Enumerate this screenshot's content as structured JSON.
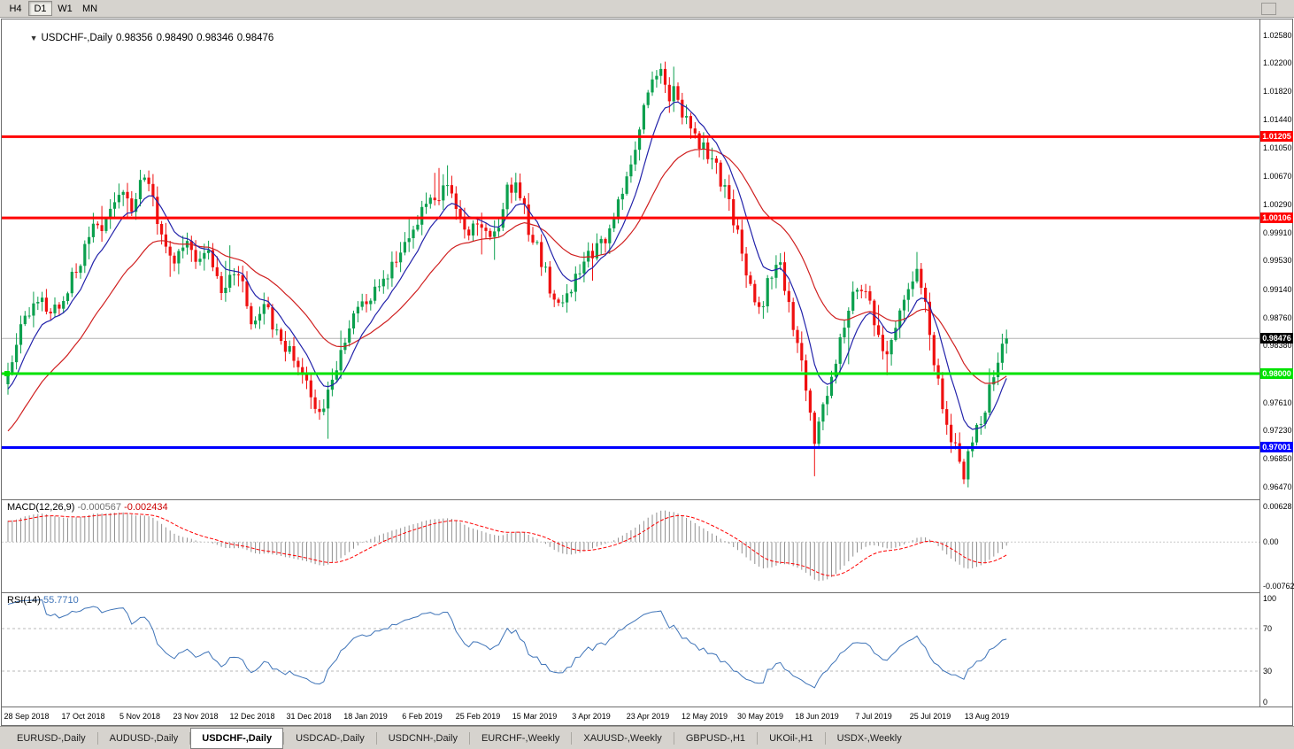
{
  "toolbar": {
    "timeframes": [
      {
        "label": "H4",
        "active": false
      },
      {
        "label": "D1",
        "active": true
      },
      {
        "label": "W1",
        "active": false
      },
      {
        "label": "MN",
        "active": false
      }
    ]
  },
  "chart_header": {
    "oct_icon": "▼",
    "symbol": "USDCHF-,Daily",
    "open": "0.98356",
    "high": "0.98490",
    "low": "0.98346",
    "close": "0.98476"
  },
  "price_axis": {
    "ticks": [
      "1.02580",
      "1.02200",
      "1.01820",
      "1.01440",
      "1.01050",
      "1.00670",
      "1.00290",
      "0.99910",
      "0.99530",
      "0.99140",
      "0.98760",
      "0.98380",
      "0.97990",
      "0.97610",
      "0.97230",
      "0.96850",
      "0.96470"
    ],
    "current": {
      "label": "0.98476",
      "value": 0.98476,
      "bg": "#000000",
      "text": "#ffffff"
    }
  },
  "levels": [
    {
      "label": "1.01205",
      "value": 1.01205,
      "color": "#ff0000",
      "text": "#ffffff",
      "marker": false
    },
    {
      "label": "1.00106",
      "value": 1.00106,
      "color": "#ff0000",
      "text": "#ffffff",
      "marker": false
    },
    {
      "label": "0.98000",
      "value": 0.98,
      "color": "#00e200",
      "text": "#ffffff",
      "marker": true
    },
    {
      "label": "0.97001",
      "value": 0.97001,
      "color": "#0000ff",
      "text": "#ffffff",
      "marker": false
    }
  ],
  "macd": {
    "title": "MACD(12,26,9)",
    "value_main": "-0.000567",
    "value_signal": "-0.002434",
    "params": {
      "fast": 12,
      "slow": 26,
      "signal": 9
    },
    "axis": {
      "top": "0.00628",
      "zero": "0.00",
      "bottom": "-0.00762"
    },
    "range": {
      "max": 0.00628,
      "min": -0.00762
    }
  },
  "rsi": {
    "title": "RSI(14)",
    "value": "55.7710",
    "period": 14,
    "axis": [
      "100",
      "70",
      "30",
      "0"
    ],
    "levels": [
      70,
      30
    ]
  },
  "date_axis": [
    "28 Sep 2018",
    "17 Oct 2018",
    "5 Nov 2018",
    "23 Nov 2018",
    "12 Dec 2018",
    "31 Dec 2018",
    "18 Jan 2019",
    "6 Feb 2019",
    "25 Feb 2019",
    "15 Mar 2019",
    "3 Apr 2019",
    "23 Apr 2019",
    "12 May 2019",
    "30 May 2019",
    "18 Jun 2019",
    "7 Jul 2019",
    "25 Jul 2019",
    "13 Aug 2019"
  ],
  "tabs": [
    {
      "label": "EURUSD-,Daily",
      "active": false
    },
    {
      "label": "AUDUSD-,Daily",
      "active": false
    },
    {
      "label": "USDCHF-,Daily",
      "active": true
    },
    {
      "label": "USDCAD-,Daily",
      "active": false
    },
    {
      "label": "USDCNH-,Daily",
      "active": false
    },
    {
      "label": "EURCHF-,Weekly",
      "active": false
    },
    {
      "label": "XAUUSD-,Weekly",
      "active": false
    },
    {
      "label": "GBPUSD-,H1",
      "active": false
    },
    {
      "label": "UKOil-,H1",
      "active": false
    },
    {
      "label": "USDX-,Weekly",
      "active": false
    }
  ],
  "chart_data": {
    "type": "candlestick",
    "symbol": "USDCHF",
    "timeframe": "Daily",
    "title": "USDCHF-,Daily",
    "visible_range": {
      "start": "28 Sep 2018",
      "end": "23 Aug 2019"
    },
    "price_range": {
      "top": 1.0279,
      "bottom": 0.963
    },
    "candle_count": 235,
    "last_close": 0.98476,
    "prelude": {
      "bars": 55,
      "start": 0.952
    },
    "ma_fast": {
      "period": 9,
      "type": "ema",
      "color": "#2222aa"
    },
    "ma_slow": {
      "period": 28,
      "type": "ema",
      "color": "#d02020"
    },
    "colors": {
      "up": "#0ba04e",
      "down": "#ef1010",
      "macd_hist": "#909090",
      "macd_signal": "#ff0000",
      "rsi": "#3f74b8",
      "current_line": "#b4b4b4"
    },
    "close_waypoints": [
      [
        0.0,
        0.98
      ],
      [
        0.012,
        0.9868
      ],
      [
        0.03,
        0.9898
      ],
      [
        0.045,
        0.9882
      ],
      [
        0.06,
        0.9918
      ],
      [
        0.075,
        0.9962
      ],
      [
        0.085,
        1.0008
      ],
      [
        0.095,
        0.9985
      ],
      [
        0.105,
        1.0038
      ],
      [
        0.115,
        1.0058
      ],
      [
        0.125,
        1.0015
      ],
      [
        0.135,
        1.0078
      ],
      [
        0.142,
        1.0055
      ],
      [
        0.152,
        0.9988
      ],
      [
        0.165,
        0.9945
      ],
      [
        0.175,
        0.9975
      ],
      [
        0.19,
        0.9958
      ],
      [
        0.202,
        0.9968
      ],
      [
        0.215,
        0.9902
      ],
      [
        0.225,
        0.9942
      ],
      [
        0.235,
        0.9918
      ],
      [
        0.245,
        0.9868
      ],
      [
        0.255,
        0.9898
      ],
      [
        0.27,
        0.9852
      ],
      [
        0.285,
        0.9828
      ],
      [
        0.295,
        0.9798
      ],
      [
        0.305,
        0.9768
      ],
      [
        0.312,
        0.9742
      ],
      [
        0.322,
        0.9792
      ],
      [
        0.332,
        0.9818
      ],
      [
        0.345,
        0.9868
      ],
      [
        0.36,
        0.9902
      ],
      [
        0.375,
        0.9932
      ],
      [
        0.39,
        0.9952
      ],
      [
        0.402,
        0.9982
      ],
      [
        0.415,
        1.0018
      ],
      [
        0.43,
        1.0042
      ],
      [
        0.44,
        1.006
      ],
      [
        0.45,
        1.0008
      ],
      [
        0.462,
        0.9992
      ],
      [
        0.475,
        1.0006
      ],
      [
        0.487,
        0.9982
      ],
      [
        0.5,
        1.0048
      ],
      [
        0.51,
        1.0058
      ],
      [
        0.52,
        1.0002
      ],
      [
        0.53,
        0.9972
      ],
      [
        0.542,
        0.9918
      ],
      [
        0.552,
        0.9888
      ],
      [
        0.565,
        0.9922
      ],
      [
        0.58,
        0.9955
      ],
      [
        0.592,
        0.9972
      ],
      [
        0.603,
        0.9998
      ],
      [
        0.615,
        1.0038
      ],
      [
        0.625,
        1.0088
      ],
      [
        0.635,
        1.0148
      ],
      [
        0.645,
        1.0192
      ],
      [
        0.652,
        1.0212
      ],
      [
        0.66,
        1.0172
      ],
      [
        0.668,
        1.0192
      ],
      [
        0.676,
        1.0152
      ],
      [
        0.685,
        1.0118
      ],
      [
        0.695,
        1.0106
      ],
      [
        0.705,
        1.0092
      ],
      [
        0.715,
        1.0058
      ],
      [
        0.725,
        1.0018
      ],
      [
        0.735,
        0.9962
      ],
      [
        0.745,
        0.9912
      ],
      [
        0.755,
        0.989
      ],
      [
        0.763,
        0.9932
      ],
      [
        0.772,
        0.9955
      ],
      [
        0.78,
        0.9902
      ],
      [
        0.79,
        0.9848
      ],
      [
        0.8,
        0.9772
      ],
      [
        0.808,
        0.9712
      ],
      [
        0.815,
        0.9742
      ],
      [
        0.825,
        0.9798
      ],
      [
        0.835,
        0.9858
      ],
      [
        0.845,
        0.9902
      ],
      [
        0.853,
        0.9928
      ],
      [
        0.862,
        0.9898
      ],
      [
        0.87,
        0.9852
      ],
      [
        0.878,
        0.9818
      ],
      [
        0.886,
        0.9848
      ],
      [
        0.895,
        0.9898
      ],
      [
        0.905,
        0.9932
      ],
      [
        0.912,
        0.9948
      ],
      [
        0.92,
        0.9882
      ],
      [
        0.93,
        0.9798
      ],
      [
        0.94,
        0.9728
      ],
      [
        0.95,
        0.9692
      ],
      [
        0.957,
        0.9662
      ],
      [
        0.965,
        0.9702
      ],
      [
        0.975,
        0.9738
      ],
      [
        0.985,
        0.9788
      ],
      [
        1.0,
        0.98476
      ]
    ]
  }
}
